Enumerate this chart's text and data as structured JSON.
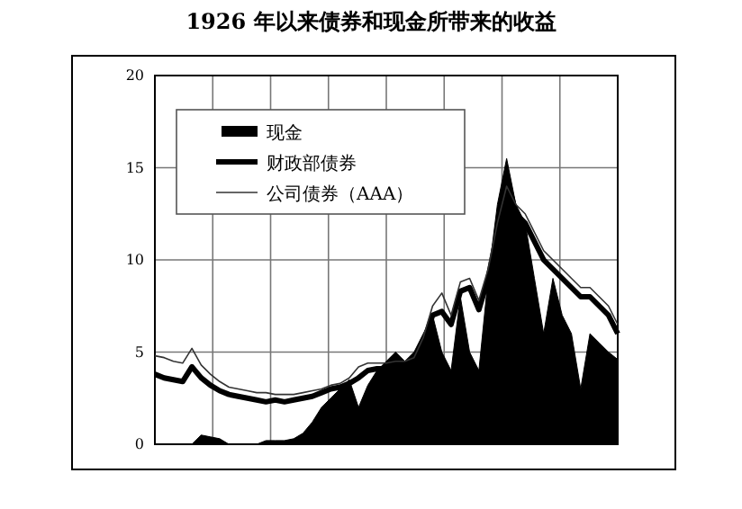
{
  "chart_data": {
    "type": "line",
    "title": "1926 年以来债券和现金所带来的收益",
    "categories": [
      null,
      null,
      null,
      null,
      null,
      null,
      null,
      null,
      null,
      null,
      null,
      null,
      null,
      null,
      null,
      null,
      null,
      null,
      null,
      null,
      null,
      null,
      null,
      null,
      null,
      null,
      null,
      null,
      null,
      null,
      null,
      null,
      null,
      null,
      null,
      null,
      null,
      null,
      null,
      null,
      null,
      null,
      null,
      null,
      null,
      null,
      null,
      null,
      null,
      null,
      null
    ],
    "ylim": [
      0,
      20
    ],
    "yticks": [
      0,
      5,
      10,
      15,
      20
    ],
    "grid": true,
    "legend": "top left",
    "tick_labels": "y",
    "series": [
      {
        "name": "现金",
        "type": "area",
        "color": "#000000",
        "values": [
          0,
          0,
          0,
          0,
          0,
          0.5,
          0.4,
          0.3,
          0,
          0,
          0,
          0,
          0.2,
          0.2,
          0.2,
          0.3,
          0.6,
          1.2,
          2,
          2.5,
          3,
          3.5,
          2,
          3.2,
          4,
          4.5,
          5,
          4.5,
          5,
          6,
          7,
          5,
          4,
          8,
          5,
          4,
          9,
          13,
          15.5,
          13,
          12,
          9,
          6,
          9,
          7,
          6,
          3,
          6,
          5.5,
          5,
          4.6
        ]
      },
      {
        "name": "财政部债券",
        "color": "#000000",
        "values": [
          3.8,
          3.6,
          3.5,
          3.4,
          4.2,
          3.6,
          3.2,
          2.9,
          2.7,
          2.6,
          2.5,
          2.4,
          2.3,
          2.4,
          2.3,
          2.4,
          2.5,
          2.6,
          2.8,
          3,
          3.1,
          3.3,
          3.6,
          4,
          4.1,
          4.1,
          4.2,
          4.3,
          4.5,
          5.5,
          7,
          7.2,
          6.5,
          8.3,
          8.5,
          7.3,
          9,
          11.5,
          14.5,
          12.5,
          12,
          11,
          10,
          9.5,
          9,
          8.5,
          8,
          8,
          7.5,
          7,
          6
        ]
      },
      {
        "name": "公司债券（AAA）",
        "color": "#333333",
        "values": [
          4.8,
          4.7,
          4.5,
          4.4,
          5.2,
          4.3,
          3.8,
          3.4,
          3.1,
          3,
          2.9,
          2.8,
          2.8,
          2.7,
          2.7,
          2.7,
          2.8,
          2.9,
          3,
          3.2,
          3.3,
          3.6,
          4.2,
          4.4,
          4.4,
          4.4,
          4.5,
          4.5,
          4.7,
          5.8,
          7.5,
          8.2,
          7,
          8.8,
          9,
          7.8,
          9.5,
          12,
          14,
          13,
          12.5,
          11.5,
          10.5,
          10,
          9.5,
          9,
          8.5,
          8.5,
          8,
          7.5,
          6.5
        ]
      }
    ]
  }
}
